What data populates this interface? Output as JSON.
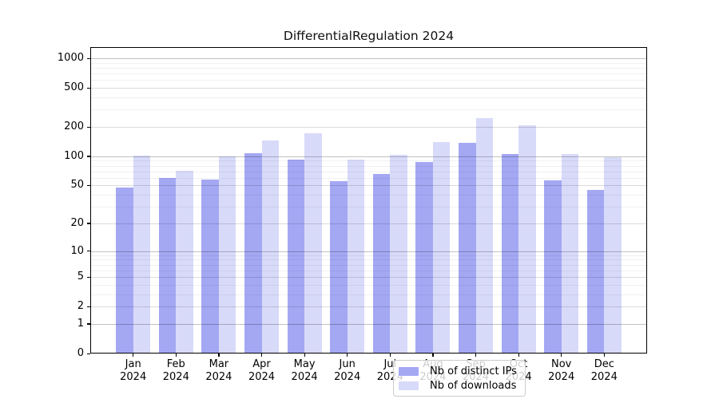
{
  "title": "DifferentialRegulation 2024",
  "chart_data": {
    "type": "bar",
    "title": "DifferentialRegulation 2024",
    "xlabel": "",
    "ylabel": "",
    "scale": "log1p",
    "grid": "on",
    "legend_position": "bottom-center",
    "categories": [
      "Jan",
      "Feb",
      "Mar",
      "Apr",
      "May",
      "Jun",
      "Jul",
      "Aug",
      "Sep",
      "Oct",
      "Nov",
      "Dec"
    ],
    "category_year": "2024",
    "series": [
      {
        "name": "Nb of distinct IPs",
        "color": "#a4a8f3",
        "values": [
          48,
          60,
          58,
          107,
          92,
          55,
          66,
          87,
          138,
          106,
          57,
          45
        ]
      },
      {
        "name": "Nb of downloads",
        "color": "#d8daf9",
        "values": [
          101,
          71,
          100,
          145,
          173,
          92,
          103,
          140,
          246,
          208,
          105,
          97
        ]
      }
    ],
    "y_ticks": [
      0,
      1,
      2,
      5,
      10,
      20,
      50,
      100,
      200,
      500,
      1000
    ],
    "ylim": [
      0,
      1300
    ]
  }
}
